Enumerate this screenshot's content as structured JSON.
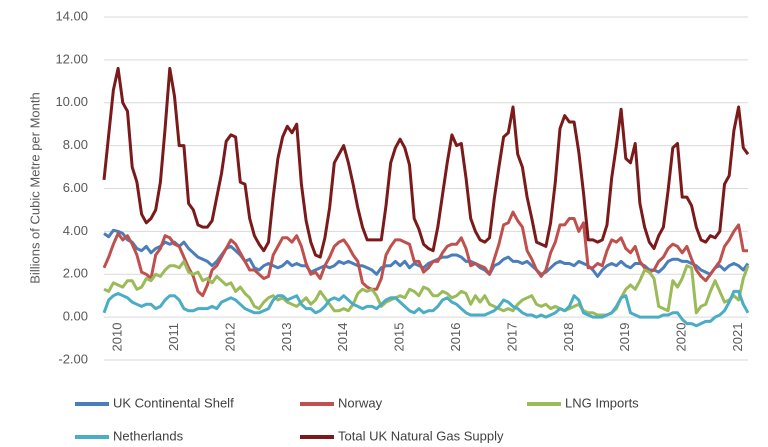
{
  "chart_data": {
    "type": "line",
    "y_label": "Billions of Cubic Metre per Month",
    "ylim": [
      -2,
      14
    ],
    "yticks": [
      {
        "value": -2,
        "label": "-2.00"
      },
      {
        "value": 0,
        "label": "0.00"
      },
      {
        "value": 2,
        "label": "2.00"
      },
      {
        "value": 4,
        "label": "4.00"
      },
      {
        "value": 6,
        "label": "6.00"
      },
      {
        "value": 8,
        "label": "8.00"
      },
      {
        "value": 10,
        "label": "10.00"
      },
      {
        "value": 12,
        "label": "12.00"
      },
      {
        "value": 14,
        "label": "14.00"
      }
    ],
    "grid": true,
    "legend": "bottom",
    "categories": [
      null,
      null,
      null,
      "2010",
      null,
      null,
      null,
      null,
      null,
      null,
      null,
      null,
      null,
      null,
      null,
      "2011",
      null,
      null,
      null,
      null,
      null,
      null,
      null,
      null,
      null,
      null,
      null,
      "2012",
      null,
      null,
      null,
      null,
      null,
      null,
      null,
      null,
      null,
      null,
      null,
      "2013",
      null,
      null,
      null,
      null,
      null,
      null,
      null,
      null,
      null,
      null,
      null,
      "2014",
      null,
      null,
      null,
      null,
      null,
      null,
      null,
      null,
      null,
      null,
      null,
      "2015",
      null,
      null,
      null,
      null,
      null,
      null,
      null,
      null,
      null,
      null,
      null,
      "2016",
      null,
      null,
      null,
      null,
      null,
      null,
      null,
      null,
      null,
      null,
      null,
      "2017",
      null,
      null,
      null,
      null,
      null,
      null,
      null,
      null,
      null,
      null,
      null,
      "2018",
      null,
      null,
      null,
      null,
      null,
      null,
      null,
      null,
      null,
      null,
      null,
      "2019",
      null,
      null,
      null,
      null,
      null,
      null,
      null,
      null,
      null,
      null,
      null,
      "2020",
      null,
      null,
      null,
      null,
      null,
      null,
      null,
      null,
      null,
      null,
      null,
      "2021",
      null,
      null
    ],
    "series": [
      {
        "name": "UK Continental Shelf",
        "color": "#4a7ebb",
        "values": [
          3.9,
          3.75,
          4.05,
          4.0,
          3.9,
          3.6,
          3.5,
          3.2,
          3.1,
          3.3,
          3.0,
          3.2,
          3.3,
          3.5,
          3.4,
          3.5,
          3.3,
          3.5,
          3.2,
          3.0,
          2.8,
          2.7,
          2.6,
          2.4,
          2.6,
          2.9,
          3.2,
          3.3,
          3.1,
          2.9,
          2.6,
          2.7,
          2.3,
          2.2,
          2.4,
          2.5,
          2.4,
          2.3,
          2.4,
          2.6,
          2.4,
          2.5,
          2.4,
          2.4,
          2.1,
          2.2,
          2.3,
          2.4,
          2.3,
          2.4,
          2.6,
          2.5,
          2.6,
          2.5,
          2.4,
          2.4,
          2.3,
          2.2,
          2.0,
          2.3,
          2.4,
          2.4,
          2.6,
          2.4,
          2.6,
          2.3,
          2.5,
          2.4,
          2.3,
          2.5,
          2.6,
          2.7,
          2.8,
          2.8,
          2.9,
          2.9,
          2.8,
          2.6,
          2.6,
          2.5,
          2.3,
          2.2,
          2.0,
          2.4,
          2.5,
          2.7,
          2.8,
          2.6,
          2.6,
          2.5,
          2.6,
          2.4,
          2.2,
          2.0,
          2.1,
          2.3,
          2.5,
          2.6,
          2.5,
          2.5,
          2.4,
          2.6,
          2.5,
          2.4,
          2.2,
          1.9,
          2.2,
          2.4,
          2.5,
          2.4,
          2.6,
          2.4,
          2.3,
          2.5,
          2.5,
          2.4,
          2.2,
          2.2,
          2.1,
          2.3,
          2.6,
          2.7,
          2.7,
          2.6,
          2.6,
          2.5,
          2.4,
          2.2,
          2.1,
          2.0,
          2.3,
          2.4,
          2.2,
          2.4,
          2.5,
          2.4,
          2.2,
          2.5
        ]
      },
      {
        "name": "Norway",
        "color": "#c0504d",
        "values": [
          2.3,
          2.8,
          3.4,
          3.9,
          3.6,
          3.8,
          3.4,
          2.9,
          2.1,
          2.0,
          1.8,
          2.9,
          3.2,
          3.8,
          3.7,
          3.4,
          3.3,
          2.8,
          2.3,
          1.9,
          1.2,
          1.0,
          1.5,
          2.2,
          2.4,
          2.8,
          3.2,
          3.6,
          3.4,
          3.0,
          2.6,
          2.2,
          2.2,
          2.0,
          1.8,
          1.9,
          2.9,
          3.3,
          3.7,
          3.7,
          3.5,
          3.8,
          3.3,
          2.5,
          2.0,
          2.1,
          1.8,
          2.4,
          2.8,
          3.3,
          3.5,
          3.6,
          3.3,
          2.9,
          2.6,
          1.6,
          1.4,
          1.3,
          1.3,
          1.8,
          2.9,
          3.3,
          3.6,
          3.6,
          3.5,
          3.4,
          2.6,
          2.6,
          2.1,
          2.3,
          2.6,
          2.6,
          3.0,
          3.3,
          3.4,
          3.4,
          3.7,
          3.2,
          2.4,
          2.5,
          2.4,
          2.3,
          2.0,
          2.7,
          3.4,
          4.3,
          4.4,
          4.9,
          4.5,
          4.2,
          3.1,
          2.7,
          2.2,
          1.9,
          2.2,
          3.0,
          3.5,
          4.3,
          4.3,
          4.6,
          4.6,
          4.0,
          4.4,
          2.3,
          2.3,
          2.5,
          2.4,
          3.1,
          3.6,
          3.5,
          3.7,
          3.2,
          3.0,
          3.3,
          2.6,
          2.3,
          2.1,
          2.2,
          2.6,
          2.8,
          3.2,
          3.4,
          3.3,
          3.0,
          3.3,
          2.7,
          2.2,
          1.9,
          1.7,
          2.0,
          2.3,
          2.6,
          3.3,
          3.6,
          4.0,
          4.3,
          3.1,
          3.1
        ]
      },
      {
        "name": "LNG Imports",
        "color": "#9bbb59",
        "values": [
          1.3,
          1.2,
          1.6,
          1.5,
          1.4,
          1.7,
          1.7,
          1.3,
          1.4,
          1.8,
          1.7,
          2.0,
          1.9,
          2.2,
          2.4,
          2.4,
          2.3,
          2.6,
          2.1,
          2.0,
          2.1,
          1.7,
          1.8,
          1.6,
          1.9,
          1.7,
          1.5,
          1.6,
          1.2,
          1.4,
          1.1,
          0.9,
          0.5,
          0.4,
          0.7,
          0.9,
          1.0,
          0.8,
          0.9,
          0.7,
          0.6,
          0.5,
          0.7,
          0.9,
          0.6,
          0.8,
          1.2,
          0.9,
          0.6,
          0.3,
          0.3,
          0.4,
          0.3,
          0.6,
          1.1,
          1.3,
          1.2,
          1.3,
          1.0,
          0.5,
          0.7,
          0.8,
          0.9,
          1.0,
          0.9,
          1.3,
          1.2,
          1.0,
          1.4,
          1.3,
          1.0,
          1.0,
          1.2,
          1.1,
          0.9,
          1.0,
          1.2,
          1.1,
          0.6,
          1.0,
          0.7,
          1.0,
          0.6,
          0.5,
          0.4,
          0.3,
          0.4,
          0.3,
          0.6,
          0.8,
          0.9,
          1.0,
          0.6,
          0.5,
          0.6,
          0.4,
          0.5,
          0.4,
          0.3,
          0.4,
          0.5,
          0.6,
          0.3,
          0.2,
          0.2,
          0.1,
          0.1,
          0.1,
          0.2,
          0.4,
          0.9,
          1.3,
          1.5,
          1.3,
          1.7,
          2.2,
          2.1,
          1.8,
          0.5,
          0.4,
          0.3,
          1.7,
          1.4,
          1.8,
          2.4,
          2.3,
          0.2,
          0.5,
          0.6,
          1.2,
          1.7,
          1.2,
          0.7,
          0.8,
          1.0,
          0.8,
          1.8,
          2.4
        ]
      },
      {
        "name": "Netherlands",
        "color": "#4bacc6",
        "values": [
          0.2,
          0.8,
          1.0,
          1.1,
          1.0,
          0.9,
          0.7,
          0.6,
          0.5,
          0.6,
          0.6,
          0.4,
          0.5,
          0.8,
          1.0,
          1.0,
          0.8,
          0.4,
          0.3,
          0.3,
          0.4,
          0.4,
          0.4,
          0.5,
          0.4,
          0.7,
          0.8,
          0.9,
          0.8,
          0.6,
          0.4,
          0.3,
          0.2,
          0.2,
          0.3,
          0.4,
          0.8,
          1.0,
          1.0,
          0.8,
          0.9,
          1.0,
          0.6,
          0.4,
          0.4,
          0.2,
          0.3,
          0.5,
          0.8,
          0.9,
          0.8,
          1.0,
          0.8,
          0.6,
          0.5,
          0.4,
          0.5,
          0.5,
          0.4,
          0.6,
          0.8,
          0.9,
          0.9,
          0.7,
          0.5,
          0.3,
          0.2,
          0.4,
          0.2,
          0.3,
          0.3,
          0.5,
          0.8,
          0.9,
          0.7,
          0.6,
          0.4,
          0.2,
          0.1,
          0.1,
          0.1,
          0.1,
          0.2,
          0.3,
          0.5,
          0.8,
          0.7,
          0.5,
          0.4,
          0.2,
          0.1,
          0.1,
          0.0,
          0.1,
          0.0,
          0.1,
          0.2,
          0.4,
          0.3,
          0.5,
          1.0,
          0.8,
          0.2,
          0.1,
          0.0,
          0.0,
          0.0,
          0.1,
          0.2,
          0.5,
          0.9,
          1.0,
          0.2,
          0.1,
          0.0,
          0.0,
          0.0,
          0.0,
          0.0,
          0.1,
          0.1,
          0.2,
          0.2,
          -0.1,
          -0.3,
          -0.3,
          -0.4,
          -0.3,
          -0.2,
          -0.2,
          0.0,
          0.1,
          0.3,
          0.7,
          1.2,
          1.2,
          0.6,
          0.2
        ]
      },
      {
        "name": "Total UK Natural Gas Supply",
        "color": "#7b1a1a",
        "values": [
          6.4,
          8.5,
          10.6,
          11.6,
          10.0,
          9.6,
          7.0,
          6.3,
          4.8,
          4.4,
          4.6,
          5.0,
          6.3,
          8.8,
          11.6,
          10.3,
          8.0,
          8.0,
          5.3,
          5.0,
          4.3,
          4.2,
          4.2,
          4.5,
          5.6,
          6.7,
          8.2,
          8.5,
          8.4,
          6.3,
          6.2,
          4.6,
          3.8,
          3.4,
          3.1,
          3.5,
          5.6,
          7.4,
          8.4,
          8.9,
          8.6,
          9.0,
          6.2,
          4.5,
          3.5,
          2.9,
          2.8,
          3.7,
          5.1,
          7.2,
          7.6,
          8.0,
          7.2,
          6.2,
          5.1,
          4.2,
          3.6,
          3.6,
          3.6,
          3.6,
          5.2,
          7.2,
          7.9,
          8.3,
          7.9,
          7.1,
          4.6,
          4.1,
          3.4,
          3.2,
          3.1,
          4.2,
          5.7,
          7.2,
          8.5,
          8.0,
          8.1,
          6.5,
          4.6,
          4.0,
          3.6,
          3.5,
          3.7,
          5.5,
          7.0,
          8.4,
          8.6,
          9.8,
          7.6,
          7.0,
          5.6,
          4.6,
          3.5,
          3.4,
          3.3,
          4.4,
          6.3,
          8.8,
          9.4,
          9.1,
          9.1,
          7.7,
          5.8,
          3.6,
          3.6,
          3.5,
          3.6,
          4.3,
          6.5,
          8.0,
          9.7,
          7.4,
          7.2,
          8.1,
          5.3,
          4.2,
          3.5,
          3.2,
          3.8,
          4.2,
          5.9,
          7.9,
          8.1,
          5.6,
          5.6,
          5.2,
          4.2,
          3.6,
          3.5,
          3.8,
          3.7,
          4.0,
          6.2,
          6.6,
          8.7,
          9.8,
          7.9,
          7.6
        ]
      }
    ]
  }
}
